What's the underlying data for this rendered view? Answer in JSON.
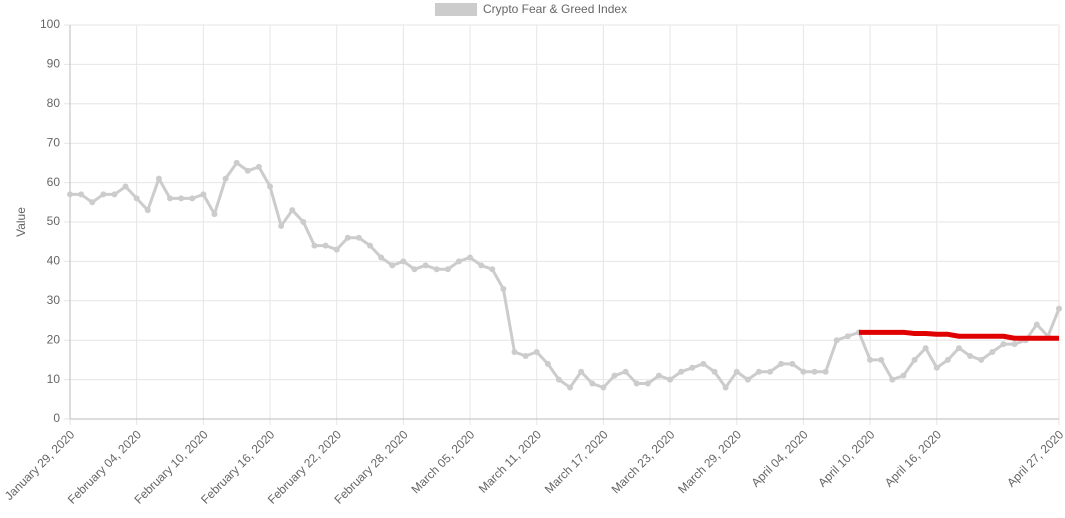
{
  "chart_data": {
    "type": "line",
    "y_label": "Value",
    "categories": [
      "January 29, 2020",
      null,
      null,
      null,
      null,
      null,
      "February 04, 2020",
      null,
      null,
      null,
      null,
      null,
      "February 10, 2020",
      null,
      null,
      null,
      null,
      null,
      "February 16, 2020",
      null,
      null,
      null,
      null,
      null,
      "February 22, 2020",
      null,
      null,
      null,
      null,
      null,
      "February 28, 2020",
      null,
      null,
      null,
      null,
      null,
      "March 05, 2020",
      null,
      null,
      null,
      null,
      null,
      "March 11, 2020",
      null,
      null,
      null,
      null,
      null,
      "March 17, 2020",
      null,
      null,
      null,
      null,
      null,
      "March 23, 2020",
      null,
      null,
      null,
      null,
      null,
      "March 29, 2020",
      null,
      null,
      null,
      null,
      null,
      "April 04, 2020",
      null,
      null,
      null,
      null,
      null,
      "April 10, 2020",
      null,
      null,
      null,
      null,
      null,
      "April 16, 2020",
      null,
      null,
      null,
      null,
      null,
      null,
      null,
      null,
      null,
      null,
      "April 27, 2020"
    ],
    "series": [
      {
        "name": "Crypto Fear & Greed Index",
        "color": "#cccccc",
        "values": [
          57,
          57,
          55,
          57,
          57,
          59,
          56,
          53,
          61,
          56,
          56,
          56,
          57,
          52,
          61,
          65,
          63,
          64,
          59,
          49,
          53,
          50,
          44,
          44,
          43,
          46,
          46,
          44,
          41,
          39,
          40,
          38,
          39,
          38,
          38,
          40,
          41,
          39,
          38,
          33,
          17,
          16,
          17,
          14,
          10,
          8,
          12,
          9,
          8,
          11,
          12,
          9,
          9,
          11,
          10,
          12,
          13,
          14,
          12,
          8,
          12,
          10,
          12,
          12,
          14,
          14,
          12,
          12,
          12,
          20,
          21,
          22,
          15,
          15,
          10,
          11,
          15,
          18,
          13,
          15,
          18,
          16,
          15,
          17,
          19,
          19,
          20,
          24,
          21,
          28
        ]
      },
      {
        "color": "#e00000",
        "values": [
          null,
          null,
          null,
          null,
          null,
          null,
          null,
          null,
          null,
          null,
          null,
          null,
          null,
          null,
          null,
          null,
          null,
          null,
          null,
          null,
          null,
          null,
          null,
          null,
          null,
          null,
          null,
          null,
          null,
          null,
          null,
          null,
          null,
          null,
          null,
          null,
          null,
          null,
          null,
          null,
          null,
          null,
          null,
          null,
          null,
          null,
          null,
          null,
          null,
          null,
          null,
          null,
          null,
          null,
          null,
          null,
          null,
          null,
          null,
          null,
          null,
          null,
          null,
          null,
          null,
          null,
          null,
          null,
          null,
          null,
          null,
          22,
          22,
          22,
          22,
          22,
          21.7,
          21.7,
          21.5,
          21.5,
          21,
          21,
          21,
          21,
          21,
          20.5,
          20.5,
          20.5,
          20.5,
          20.5
        ]
      }
    ],
    "ylim": [
      0,
      100
    ],
    "yticks": [
      0,
      10,
      20,
      30,
      40,
      50,
      60,
      70,
      80,
      90,
      100
    ],
    "grid": true,
    "legend": "top"
  }
}
